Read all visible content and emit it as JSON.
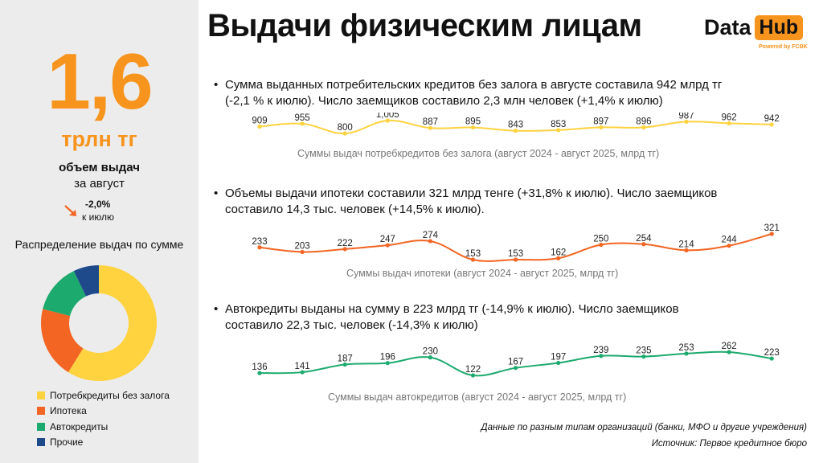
{
  "kpi": {
    "value": "1,6",
    "unit": "трлн тг",
    "label": "объем выдач",
    "period": "за август",
    "change": "-2,0%",
    "change_label": "к июлю"
  },
  "distribution": {
    "title": "Распределение выдач по сумме",
    "segments": [
      {
        "name": "Потребкредиты без залога",
        "value": 942,
        "color": "#ffd23f"
      },
      {
        "name": "Ипотека",
        "value": 321,
        "color": "#f26522"
      },
      {
        "name": "Автокредиты",
        "value": 223,
        "color": "#1daa6e"
      },
      {
        "name": "Прочие",
        "value": 114,
        "color": "#1e4a8c"
      }
    ]
  },
  "header": {
    "title": "Выдачи физическим лицам",
    "logo_data": "Data",
    "logo_hub": "Hub",
    "logo_sub": "Powered by FCBK"
  },
  "sections": [
    {
      "line1": "Сумма выданных потребительских кредитов без залога в августе составила 942 млрд тг",
      "line2": "(-2,1 % к июлю). Число заемщиков составило 2,3 млн человек (+1,4% к июлю)",
      "caption": "Суммы выдач потребкредитов без залога (август 2024 - август 2025, млрд тг)"
    },
    {
      "line1": "Объемы выдачи ипотеки составили 321 млрд тенге (+31,8% к июлю). Число заемщиков",
      "line2": "составило 14,3 тыс. человек (+14,5% к июлю).",
      "caption": "Суммы выдач ипотеки  (август 2024 - август 2025, млрд тг)"
    },
    {
      "line1": "Автокредиты выданы на сумму в 223 млрд тг (-14,9% к июлю). Число заемщиков",
      "line2": "составило 22,3 тыс. человек (-14,3% к июлю)",
      "caption": "Суммы выдач автокредитов (август 2024 - август 2025, млрд тг)"
    }
  ],
  "footer": {
    "note": "Данные по разным типам организаций (банки, МФО и другие учреждения)",
    "source": "Источник: Первое кредитное бюро"
  },
  "chart_data": [
    {
      "type": "line",
      "title": "Суммы выдач потребкредитов без залога (август 2024 - август 2025, млрд тг)",
      "values": [
        909,
        955,
        800,
        1005,
        887,
        895,
        843,
        853,
        897,
        896,
        987,
        962,
        942
      ],
      "labels": [
        "909",
        "955",
        "800",
        "1,005",
        "887",
        "895",
        "843",
        "853",
        "897",
        "896",
        "987",
        "962",
        "942"
      ],
      "color": "#ffd23f",
      "ylim": [
        800,
        1005
      ]
    },
    {
      "type": "line",
      "title": "Суммы выдач ипотеки  (август 2024 - август 2025, млрд тг)",
      "values": [
        233,
        203,
        222,
        247,
        274,
        153,
        153,
        162,
        250,
        254,
        214,
        244,
        321
      ],
      "labels": [
        "233",
        "203",
        "222",
        "247",
        "274",
        "153",
        "153",
        "162",
        "250",
        "254",
        "214",
        "244",
        "321"
      ],
      "color": "#f26522",
      "ylim": [
        153,
        321
      ]
    },
    {
      "type": "line",
      "title": "Суммы выдач автокредитов (август 2024 - август 2025, млрд тг)",
      "values": [
        136,
        141,
        187,
        196,
        230,
        122,
        167,
        197,
        239,
        235,
        253,
        262,
        223
      ],
      "labels": [
        "136",
        "141",
        "187",
        "196",
        "230",
        "122",
        "167",
        "197",
        "239",
        "235",
        "253",
        "262",
        "223"
      ],
      "color": "#1daa6e",
      "ylim": [
        122,
        262
      ]
    },
    {
      "type": "pie",
      "title": "Распределение выдач по сумме",
      "categories": [
        "Потребкредиты без залога",
        "Ипотека",
        "Автокредиты",
        "Прочие"
      ],
      "values": [
        942,
        321,
        223,
        114
      ]
    }
  ]
}
